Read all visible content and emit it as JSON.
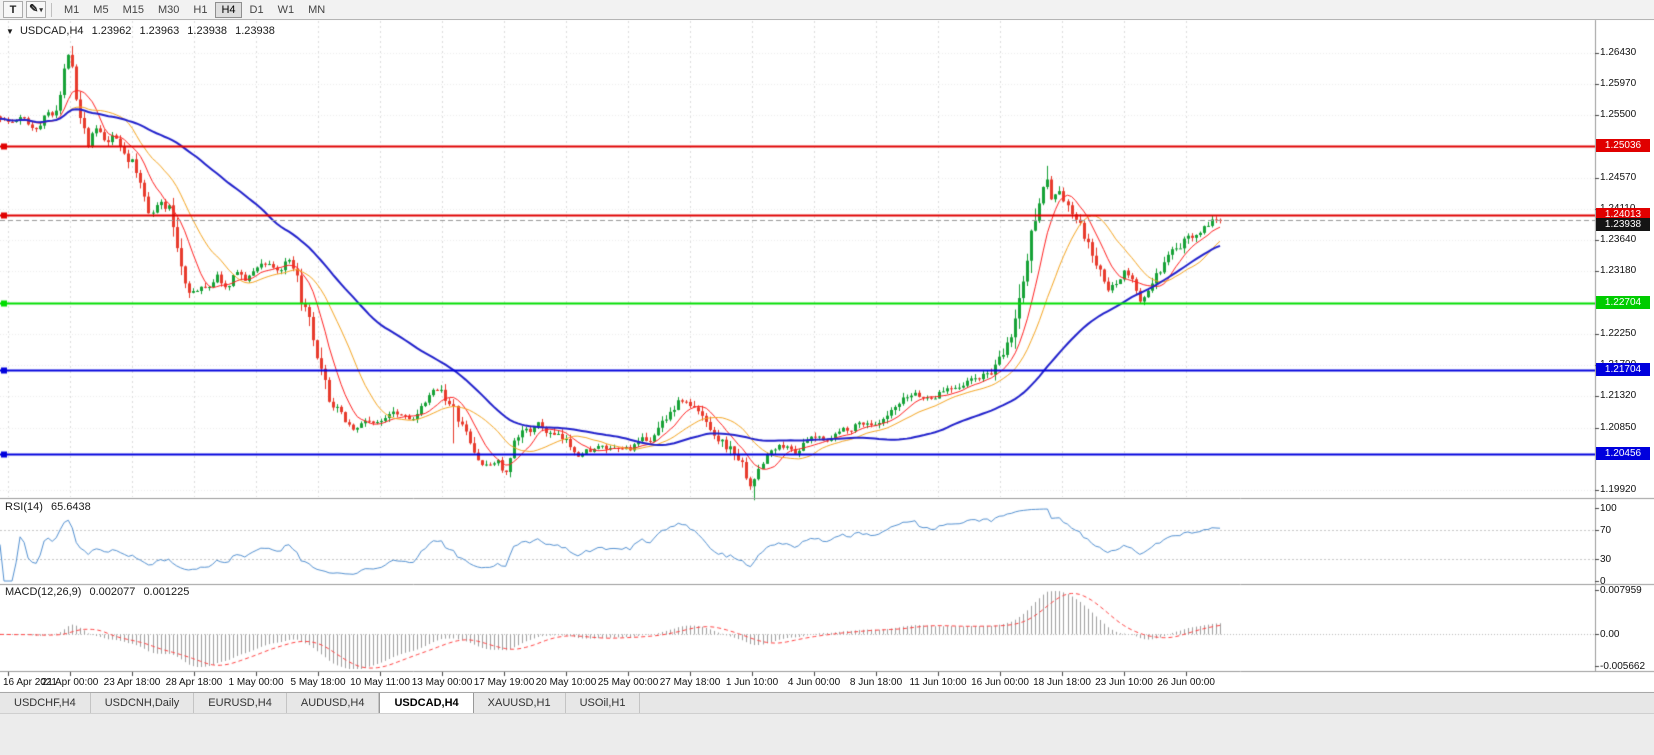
{
  "toolbar": {
    "t_button": "T",
    "drawing_tool_icon": "✎",
    "drawing_tool_caret": "▾",
    "timeframes": [
      "M1",
      "M5",
      "M15",
      "M30",
      "H1",
      "H4",
      "D1",
      "W1",
      "MN"
    ],
    "active_timeframe": "H4"
  },
  "chart": {
    "marker": "▼",
    "symbol": "USDCAD,H4",
    "ohlc": {
      "open": "1.23962",
      "high": "1.23963",
      "low": "1.23938",
      "close": "1.23938"
    }
  },
  "indicators": {
    "rsi": {
      "label": "RSI(14)",
      "value": "65.6438"
    },
    "macd": {
      "label": "MACD(12,26,9)",
      "value_main": "0.002077",
      "value_signal": "0.001225"
    }
  },
  "price_axis": {
    "labels": [
      "1.26430",
      "1.25970",
      "1.25500",
      "1.24570",
      "1.24110",
      "1.23640",
      "1.23180",
      "1.22250",
      "1.21790",
      "1.21320",
      "1.20850",
      "1.19920"
    ],
    "badges": [
      {
        "text": "1.25036",
        "price": 1.25036,
        "bg": "#e00000",
        "fg": "#ffffff"
      },
      {
        "text": "1.24013",
        "price": 1.24013,
        "bg": "#e00000",
        "fg": "#ffffff"
      },
      {
        "text": "1.23938",
        "price": 1.23938,
        "bg": "#141414",
        "fg": "#ffffff",
        "current": true
      },
      {
        "text": "1.22704",
        "price": 1.22704,
        "bg": "#00cc00",
        "fg": "#ffffff"
      },
      {
        "text": "1.21704",
        "price": 1.21704,
        "bg": "#0000dd",
        "fg": "#ffffff"
      },
      {
        "text": "1.20456",
        "price": 1.20456,
        "bg": "#0000dd",
        "fg": "#ffffff"
      }
    ]
  },
  "rsi_axis": {
    "labels": [
      {
        "text": "100",
        "value": 100
      },
      {
        "text": "70",
        "value": 70
      },
      {
        "text": "30",
        "value": 30
      },
      {
        "text": "0",
        "value": 0
      }
    ],
    "levels": [
      70,
      30
    ]
  },
  "macd_axis": {
    "max": 0.007959,
    "min": -0.005662,
    "labels": [
      {
        "text": "0.007959",
        "value": 0.007959
      },
      {
        "text": "0.00",
        "value": 0
      },
      {
        "text": "-0.005662",
        "value": -0.005662
      }
    ]
  },
  "time_axis": {
    "labels": [
      "16 Apr 2021",
      "21 Apr 00:00",
      "23 Apr 18:00",
      "28 Apr 18:00",
      "1 May 00:00",
      "5 May 18:00",
      "10 May 11:00",
      "13 May 00:00",
      "17 May 19:00",
      "20 May 10:00",
      "25 May 00:00",
      "27 May 18:00",
      "1 Jun 10:00",
      "4 Jun 00:00",
      "8 Jun 18:00",
      "11 Jun 10:00",
      "16 Jun 00:00",
      "18 Jun 18:00",
      "23 Jun 10:00",
      "26 Jun 00:00"
    ]
  },
  "tabs": {
    "items": [
      "USDCHF,H4",
      "USDCNH,Daily",
      "EURUSD,H4",
      "AUDUSD,H4",
      "USDCAD,H4",
      "XAUUSD,H1",
      "USOil,H1"
    ],
    "active": "USDCAD,H4"
  },
  "chart_data": {
    "type": "candlestick",
    "symbol": "USDCAD",
    "period": "H4",
    "last_price": 1.23938,
    "current_bar_ohlc": [
      1.23962,
      1.23963,
      1.23938,
      1.23938
    ],
    "price_range": {
      "top": 1.269,
      "bottom": 1.1982
    },
    "candle_count": 305,
    "up_color": "#17a237",
    "down_color": "#e83b2d",
    "moving_averages": [
      {
        "period": 8,
        "color": "#ff2222",
        "width": 1
      },
      {
        "period": 17,
        "color": "#f5a623",
        "width": 1
      },
      {
        "period": 50,
        "color": "#2222cc",
        "width": 2
      }
    ],
    "horizontal_lines": [
      {
        "price": 1.25036,
        "color": "#e00000",
        "width": 2
      },
      {
        "price": 1.24013,
        "color": "#e00000",
        "width": 2
      },
      {
        "price": 1.22704,
        "color": "#00dd00",
        "width": 2
      },
      {
        "price": 1.21704,
        "color": "#0000dd",
        "width": 2
      },
      {
        "price": 1.20456,
        "color": "#0000dd",
        "width": 2
      },
      {
        "price": 1.23938,
        "color": "#999999",
        "width": 1,
        "style": "dashed",
        "handle": false
      }
    ],
    "rsi": {
      "period": 14,
      "color": "#5592d2",
      "last": 65.6438
    },
    "macd": {
      "fast": 12,
      "slow": 26,
      "signal": 9,
      "hist_color": "#a0a0a0",
      "signal_color": "#ff4444",
      "last_main": 0.002077,
      "last_signal": 0.001225
    },
    "wick_spikes": [
      {
        "t": 0.058,
        "high_ext": 0.0012
      },
      {
        "t": 0.371,
        "low_ext": 0.0055
      },
      {
        "t": 0.617,
        "low_ext": 0.002
      },
      {
        "t": 0.857,
        "high_ext": 0.0012
      }
    ],
    "price_path_waypoints": [
      [
        0.0,
        1.2548
      ],
      [
        0.008,
        1.2538
      ],
      [
        0.018,
        1.2545
      ],
      [
        0.028,
        1.253
      ],
      [
        0.038,
        1.2552
      ],
      [
        0.048,
        1.257
      ],
      [
        0.055,
        1.264
      ],
      [
        0.058,
        1.265
      ],
      [
        0.062,
        1.2585
      ],
      [
        0.068,
        1.2545
      ],
      [
        0.072,
        1.2515
      ],
      [
        0.08,
        1.2532
      ],
      [
        0.086,
        1.2505
      ],
      [
        0.094,
        1.2515
      ],
      [
        0.101,
        1.2498
      ],
      [
        0.108,
        1.2482
      ],
      [
        0.115,
        1.2445
      ],
      [
        0.122,
        1.2408
      ],
      [
        0.13,
        1.2422
      ],
      [
        0.138,
        1.241
      ],
      [
        0.145,
        1.2352
      ],
      [
        0.152,
        1.23
      ],
      [
        0.16,
        1.2288
      ],
      [
        0.17,
        1.2296
      ],
      [
        0.178,
        1.2312
      ],
      [
        0.186,
        1.2288
      ],
      [
        0.194,
        1.232
      ],
      [
        0.202,
        1.2302
      ],
      [
        0.21,
        1.2326
      ],
      [
        0.219,
        1.2332
      ],
      [
        0.228,
        1.2318
      ],
      [
        0.236,
        1.233
      ],
      [
        0.244,
        1.2292
      ],
      [
        0.252,
        1.2242
      ],
      [
        0.26,
        1.217
      ],
      [
        0.269,
        1.2122
      ],
      [
        0.28,
        1.21
      ],
      [
        0.291,
        1.2082
      ],
      [
        0.301,
        1.2098
      ],
      [
        0.311,
        1.2088
      ],
      [
        0.321,
        1.2116
      ],
      [
        0.331,
        1.2106
      ],
      [
        0.341,
        1.21
      ],
      [
        0.351,
        1.2124
      ],
      [
        0.361,
        1.2146
      ],
      [
        0.369,
        1.2118
      ],
      [
        0.379,
        1.2082
      ],
      [
        0.389,
        1.2042
      ],
      [
        0.399,
        1.2025
      ],
      [
        0.407,
        1.204
      ],
      [
        0.414,
        1.2012
      ],
      [
        0.421,
        1.2055
      ],
      [
        0.431,
        1.2082
      ],
      [
        0.441,
        1.2088
      ],
      [
        0.451,
        1.2074
      ],
      [
        0.463,
        1.2062
      ],
      [
        0.475,
        1.2048
      ],
      [
        0.489,
        1.2056
      ],
      [
        0.503,
        1.2048
      ],
      [
        0.515,
        1.2054
      ],
      [
        0.527,
        1.2062
      ],
      [
        0.538,
        1.2078
      ],
      [
        0.549,
        1.2112
      ],
      [
        0.558,
        1.2128
      ],
      [
        0.567,
        1.2116
      ],
      [
        0.576,
        1.2098
      ],
      [
        0.586,
        1.208
      ],
      [
        0.596,
        1.2058
      ],
      [
        0.606,
        1.204
      ],
      [
        0.613,
        1.2008
      ],
      [
        0.617,
        1.1998
      ],
      [
        0.623,
        1.203
      ],
      [
        0.631,
        1.205
      ],
      [
        0.641,
        1.2058
      ],
      [
        0.651,
        1.205
      ],
      [
        0.661,
        1.2064
      ],
      [
        0.671,
        1.2068
      ],
      [
        0.681,
        1.2072
      ],
      [
        0.691,
        1.2082
      ],
      [
        0.701,
        1.209
      ],
      [
        0.711,
        1.2094
      ],
      [
        0.719,
        1.2086
      ],
      [
        0.729,
        1.21
      ],
      [
        0.74,
        1.212
      ],
      [
        0.75,
        1.2136
      ],
      [
        0.76,
        1.2128
      ],
      [
        0.77,
        1.2136
      ],
      [
        0.78,
        1.2148
      ],
      [
        0.79,
        1.2154
      ],
      [
        0.8,
        1.2158
      ],
      [
        0.81,
        1.2164
      ],
      [
        0.82,
        1.218
      ],
      [
        0.828,
        1.2212
      ],
      [
        0.837,
        1.2285
      ],
      [
        0.846,
        1.2375
      ],
      [
        0.853,
        1.2445
      ],
      [
        0.857,
        1.2468
      ],
      [
        0.862,
        1.2428
      ],
      [
        0.868,
        1.244
      ],
      [
        0.874,
        1.241
      ],
      [
        0.881,
        1.2396
      ],
      [
        0.888,
        1.2366
      ],
      [
        0.895,
        1.2336
      ],
      [
        0.902,
        1.231
      ],
      [
        0.908,
        1.2284
      ],
      [
        0.915,
        1.23
      ],
      [
        0.921,
        1.232
      ],
      [
        0.928,
        1.2302
      ],
      [
        0.934,
        1.227
      ],
      [
        0.941,
        1.229
      ],
      [
        0.949,
        1.2312
      ],
      [
        0.957,
        1.233
      ],
      [
        0.965,
        1.2348
      ],
      [
        0.973,
        1.2364
      ],
      [
        0.981,
        1.238
      ],
      [
        0.99,
        1.2392
      ],
      [
        1.0,
        1.2394
      ]
    ]
  }
}
